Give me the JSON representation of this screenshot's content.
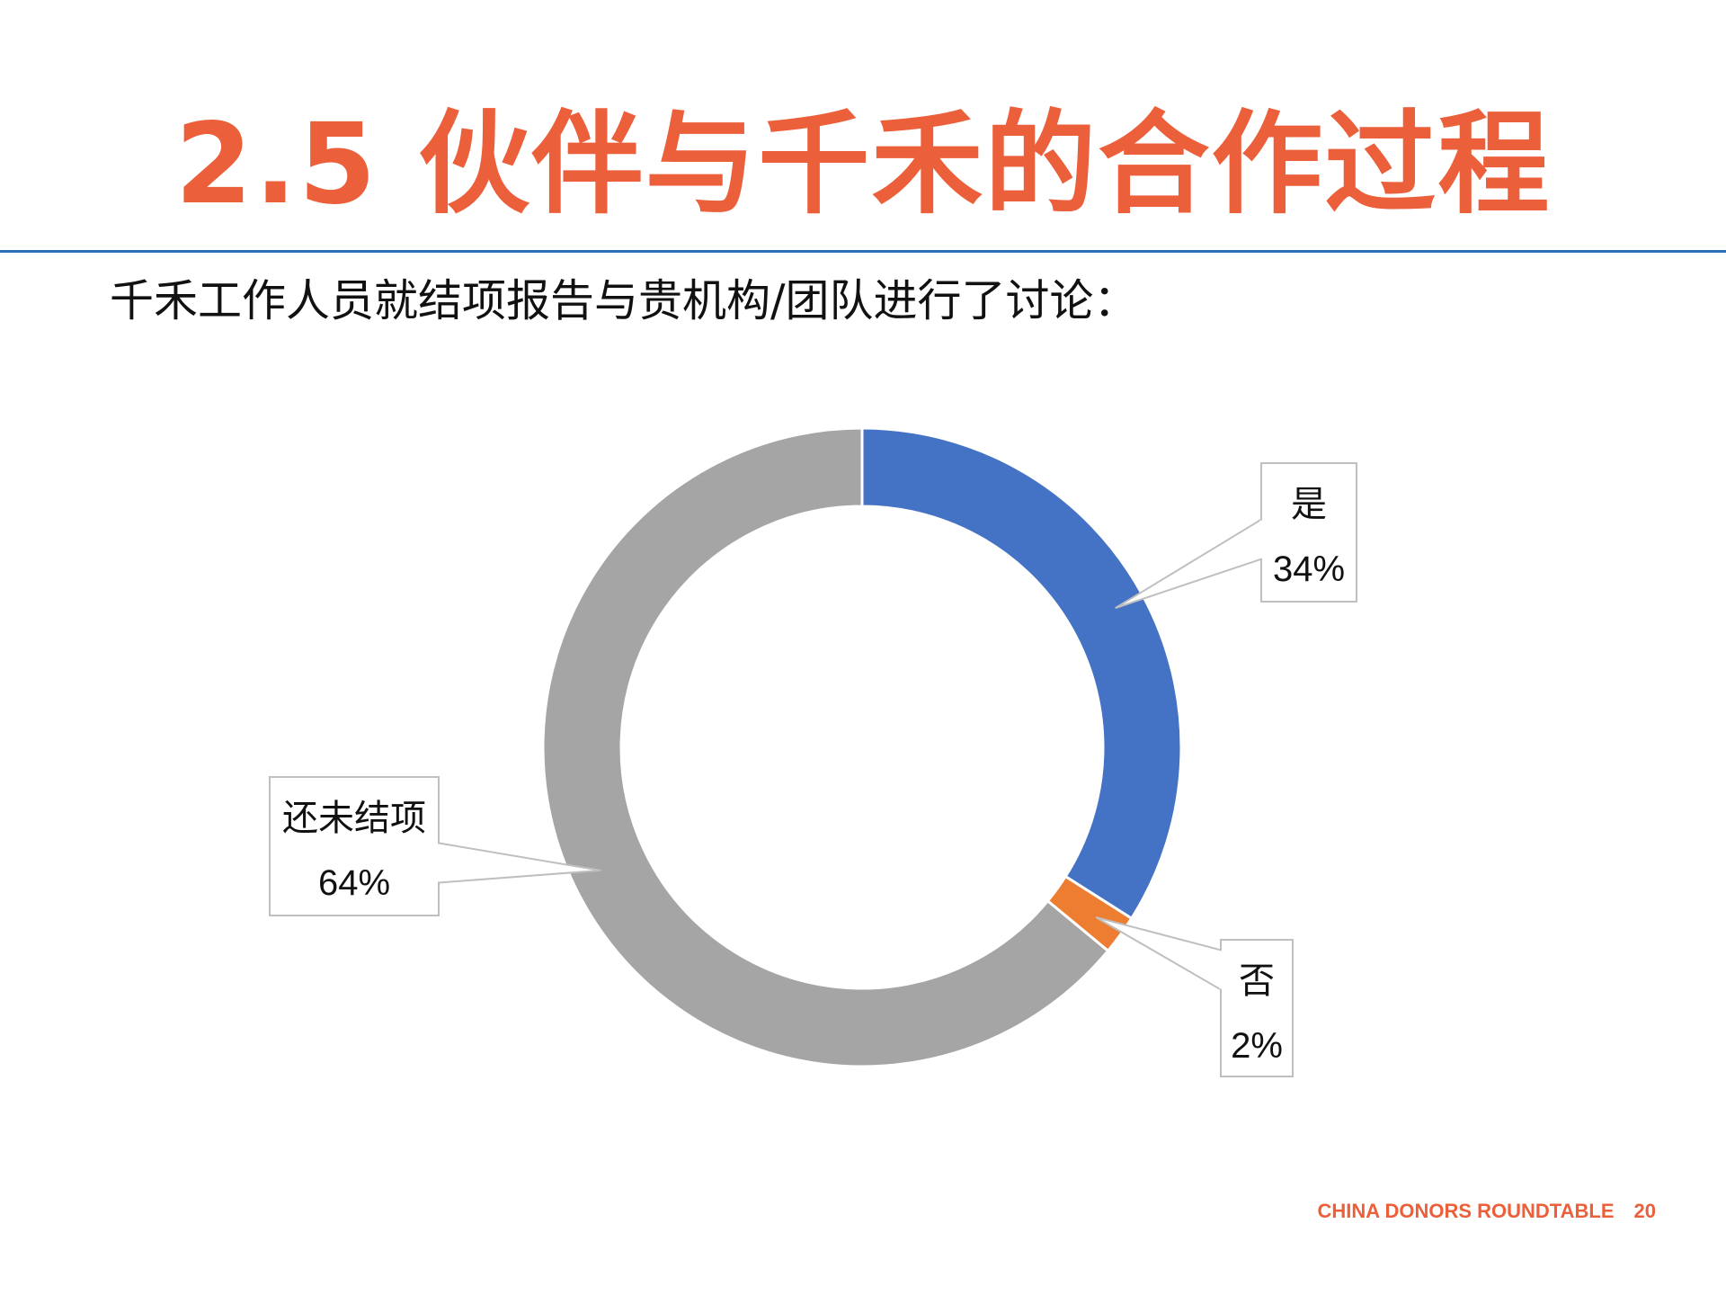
{
  "slide": {
    "title": "2.5 伙伴与千禾的合作过程",
    "subtitle": "千禾工作人员就结项报告与贵机构/团队进行了讨论：",
    "footer_text": "CHINA DONORS ROUNDTABLE",
    "page_number": "20"
  },
  "colors": {
    "title": "#ec5f3b",
    "rule": "#2e6fb7",
    "footer": "#ec5f3b"
  },
  "chart_data": {
    "type": "pie",
    "variant": "donut",
    "title": "",
    "legend": "none",
    "start_angle_deg": 0,
    "direction": "clockwise",
    "slices": [
      {
        "label": "是",
        "value": 34,
        "value_label": "34%",
        "color": "#4472c4"
      },
      {
        "label": "否",
        "value": 2,
        "value_label": "2%",
        "color": "#ed7d31"
      },
      {
        "label": "还未结项",
        "value": 64,
        "value_label": "64%",
        "color": "#a5a5a5"
      }
    ]
  }
}
